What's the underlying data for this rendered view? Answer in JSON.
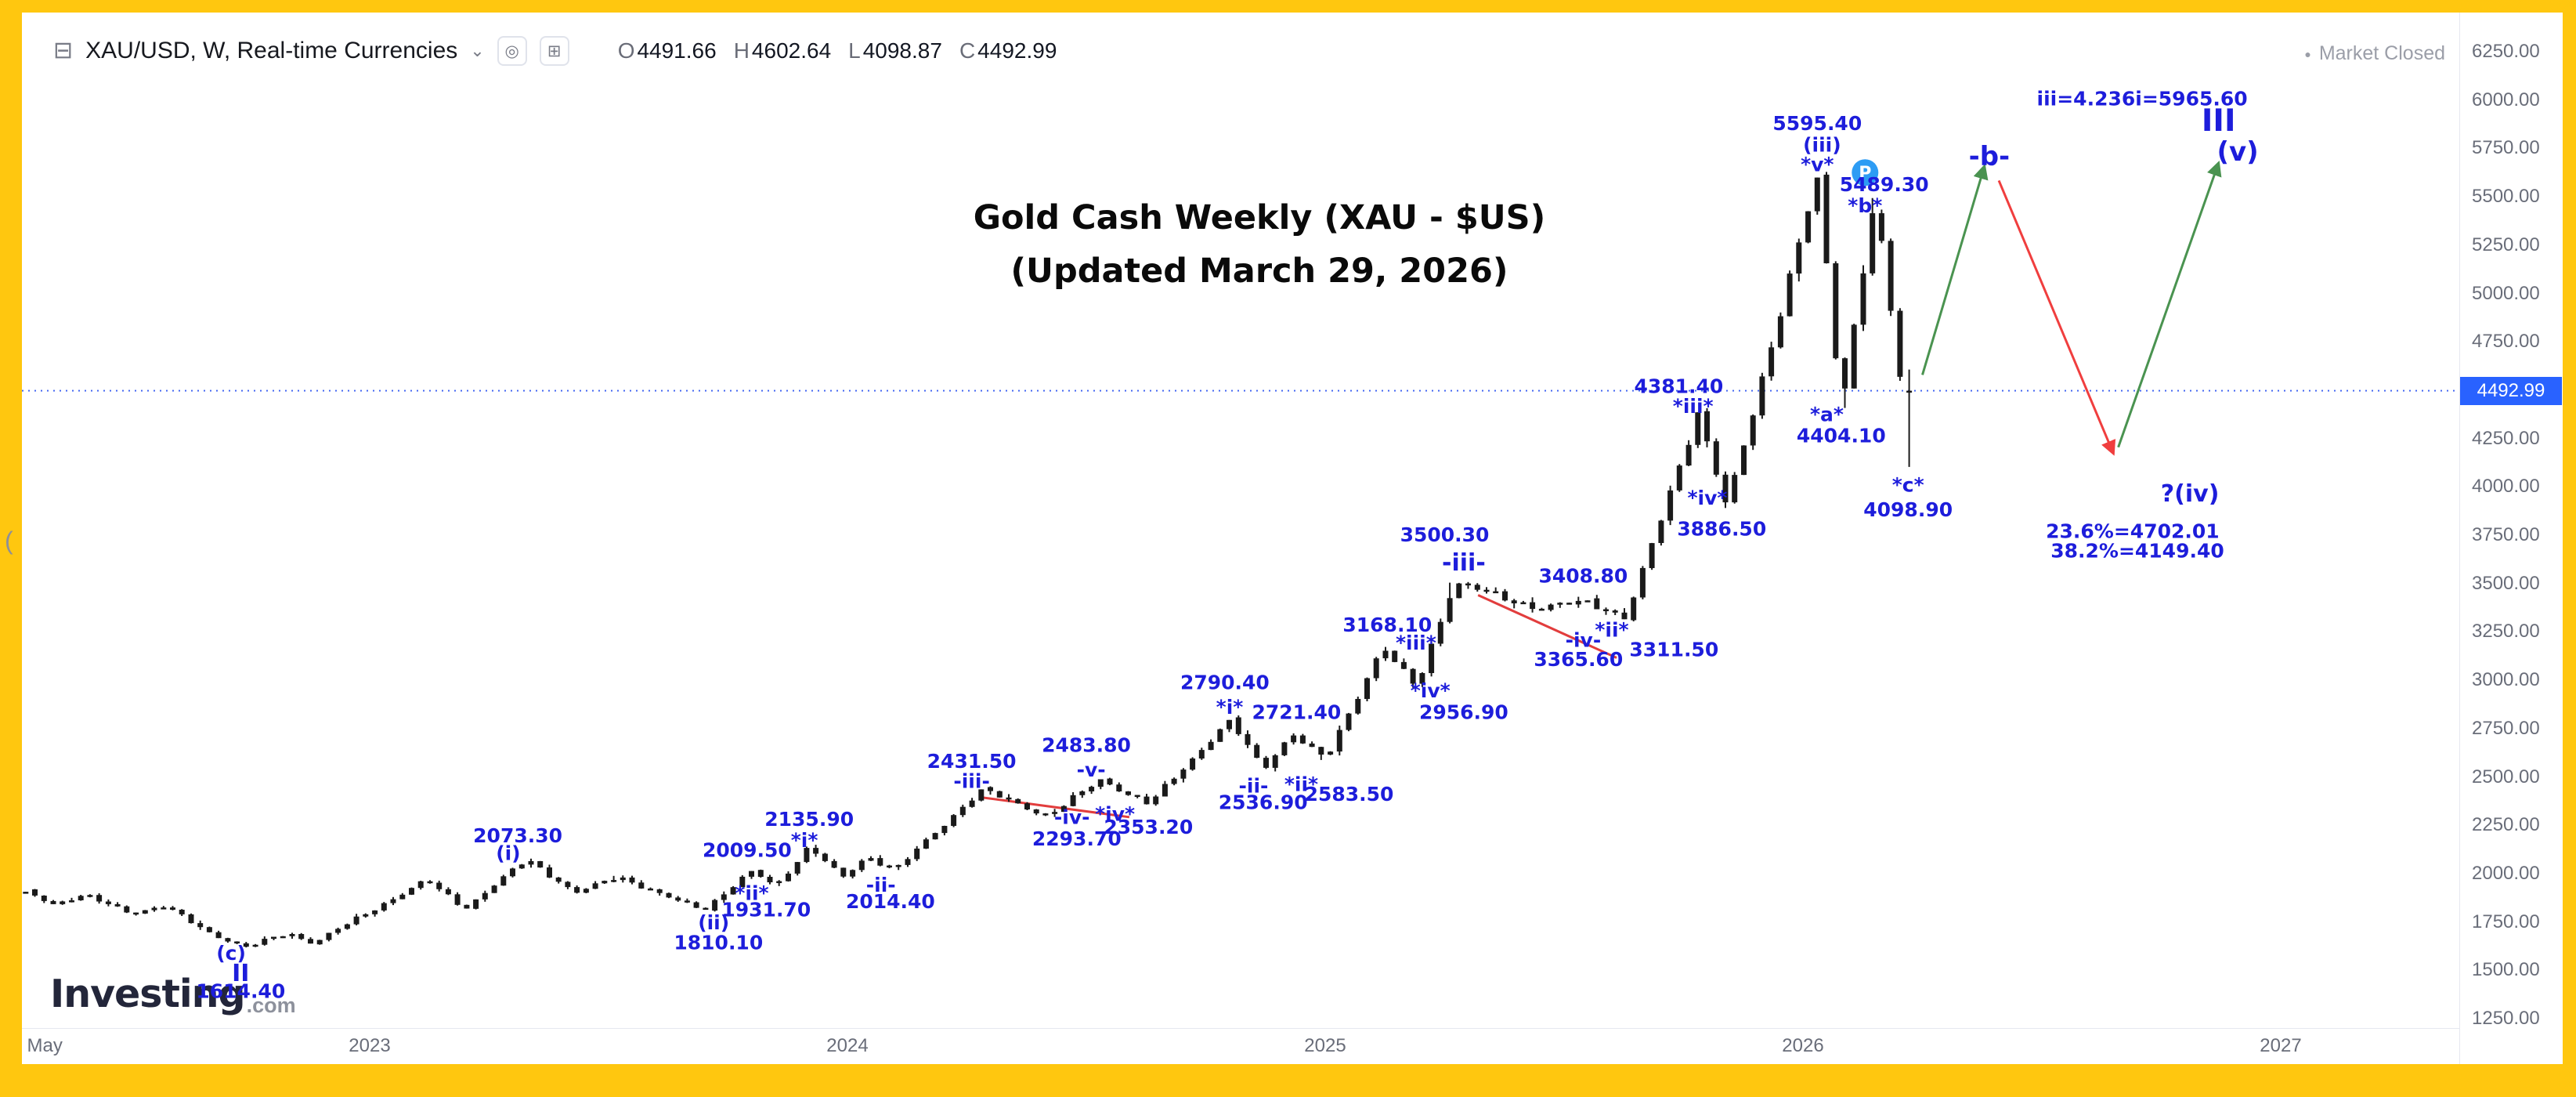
{
  "header": {
    "symbol_title": "XAU/USD, W, Real-time Currencies",
    "ohlc": [
      {
        "k": "O",
        "v": "4491.66"
      },
      {
        "k": "H",
        "v": "4602.64"
      },
      {
        "k": "L",
        "v": "4098.87"
      },
      {
        "k": "C",
        "v": "4492.99"
      }
    ],
    "market_status": "Market Closed"
  },
  "title": {
    "line1": "Gold Cash Weekly (XAU - $US)",
    "line2": "(Updated March 29, 2026)"
  },
  "watermark": {
    "main": "Investing",
    "suffix": ".com"
  },
  "misc": {
    "left_glyph": "("
  },
  "price_axis": {
    "ticks": [
      "6250.00",
      "6000.00",
      "5750.00",
      "5500.00",
      "5250.00",
      "5000.00",
      "4750.00",
      "4500.00",
      "4250.00",
      "4000.00",
      "3750.00",
      "3500.00",
      "3250.00",
      "3000.00",
      "2750.00",
      "2500.00",
      "2250.00",
      "2000.00",
      "1750.00",
      "1500.00",
      "1250.00"
    ],
    "badge": "4492.99"
  },
  "time_axis": {
    "ticks": [
      {
        "label": "May",
        "t": 2022.32
      },
      {
        "label": "2023",
        "t": 2023
      },
      {
        "label": "2024",
        "t": 2024
      },
      {
        "label": "2025",
        "t": 2025
      },
      {
        "label": "2026",
        "t": 2026
      },
      {
        "label": "2027",
        "t": 2027
      }
    ]
  },
  "chart_data": {
    "type": "candlestick",
    "symbol": "XAU/USD",
    "timeframe": "W",
    "title": "Gold Cash Weekly (XAU - $US)",
    "subtitle": "(Updated March 29, 2026)",
    "ylim": [
      1250,
      6250
    ],
    "xlim_years": [
      2022.27,
      2027.37
    ],
    "grid": false,
    "current_price": 4492.99,
    "ohlc_last": {
      "o": 4491.66,
      "h": 4602.64,
      "l": 4098.87,
      "c": 4492.99
    },
    "pivots": [
      [
        2022.28,
        1902
      ],
      [
        2022.34,
        1838
      ],
      [
        2022.4,
        1886
      ],
      [
        2022.5,
        1792
      ],
      [
        2022.57,
        1829
      ],
      [
        2022.66,
        1695
      ],
      [
        2022.74,
        1614.4
      ],
      [
        2022.83,
        1690
      ],
      [
        2022.88,
        1634
      ],
      [
        2023.02,
        1828
      ],
      [
        2023.12,
        1962
      ],
      [
        2023.2,
        1815
      ],
      [
        2023.33,
        2073.3
      ],
      [
        2023.43,
        1893
      ],
      [
        2023.52,
        1984
      ],
      [
        2023.61,
        1885
      ],
      [
        2023.7,
        1810.1
      ],
      [
        2023.8,
        2009.5
      ],
      [
        2023.85,
        1931.7
      ],
      [
        2023.92,
        2135.9
      ],
      [
        2023.99,
        1974
      ],
      [
        2024.04,
        2086
      ],
      [
        2024.1,
        2014.4
      ],
      [
        2024.28,
        2431.5
      ],
      [
        2024.42,
        2293.7
      ],
      [
        2024.53,
        2483.8
      ],
      [
        2024.63,
        2353.2
      ],
      [
        2024.8,
        2790.4
      ],
      [
        2024.87,
        2536.9
      ],
      [
        2024.93,
        2721.4
      ],
      [
        2025.0,
        2583.5
      ],
      [
        2025.12,
        3168.1
      ],
      [
        2025.19,
        2956.9
      ],
      [
        2025.27,
        3500.3
      ],
      [
        2025.45,
        3365.6
      ],
      [
        2025.55,
        3408.8
      ],
      [
        2025.63,
        3311.5
      ],
      [
        2025.78,
        4381.4
      ],
      [
        2025.84,
        3886.5
      ],
      [
        2026.03,
        5595.4
      ],
      [
        2026.08,
        4404.1
      ],
      [
        2026.15,
        5489.3
      ],
      [
        2026.23,
        4098.9
      ]
    ],
    "annotations": [
      {
        "text": "(c)",
        "t": 2022.71,
        "p": 1585
      },
      {
        "text": "II",
        "t": 2022.73,
        "p": 1482,
        "s": "md"
      },
      {
        "text": "1614.40",
        "t": 2022.73,
        "p": 1388
      },
      {
        "text": "2073.30",
        "t": 2023.31,
        "p": 2194
      },
      {
        "text": "(i)",
        "t": 2023.29,
        "p": 2101
      },
      {
        "text": "2009.50",
        "t": 2023.79,
        "p": 2118
      },
      {
        "text": "2135.90",
        "t": 2023.92,
        "p": 2279
      },
      {
        "text": "*i*",
        "t": 2023.91,
        "p": 2169
      },
      {
        "text": "*ii*",
        "t": 2023.8,
        "p": 1896
      },
      {
        "text": "1931.70",
        "t": 2023.83,
        "p": 1811
      },
      {
        "text": "(ii)",
        "t": 2023.72,
        "p": 1743
      },
      {
        "text": "1810.10",
        "t": 2023.73,
        "p": 1641
      },
      {
        "text": "-ii-",
        "t": 2024.07,
        "p": 1938
      },
      {
        "text": "2014.40",
        "t": 2024.09,
        "p": 1853
      },
      {
        "text": "2431.50",
        "t": 2024.26,
        "p": 2577
      },
      {
        "text": "-iii-",
        "t": 2024.26,
        "p": 2475
      },
      {
        "text": "-iv-",
        "t": 2024.47,
        "p": 2288
      },
      {
        "text": "2293.70",
        "t": 2024.48,
        "p": 2177
      },
      {
        "text": "2483.80",
        "t": 2024.5,
        "p": 2661
      },
      {
        "text": "-v-",
        "t": 2024.51,
        "p": 2534
      },
      {
        "text": "*iv*",
        "t": 2024.56,
        "p": 2305
      },
      {
        "text": "2353.20",
        "t": 2024.63,
        "p": 2237
      },
      {
        "text": "2790.40",
        "t": 2024.79,
        "p": 2985
      },
      {
        "text": "*i*",
        "t": 2024.8,
        "p": 2858
      },
      {
        "text": "2721.40",
        "t": 2024.94,
        "p": 2832
      },
      {
        "text": "-ii-",
        "t": 2024.85,
        "p": 2450
      },
      {
        "text": "2536.90",
        "t": 2024.87,
        "p": 2365
      },
      {
        "text": "*ii*",
        "t": 2024.95,
        "p": 2458
      },
      {
        "text": "2583.50",
        "t": 2025.05,
        "p": 2407
      },
      {
        "text": "3168.10",
        "t": 2025.13,
        "p": 3283
      },
      {
        "text": "*iii*",
        "t": 2025.19,
        "p": 3190
      },
      {
        "text": "*iv*",
        "t": 2025.22,
        "p": 2943
      },
      {
        "text": "2956.90",
        "t": 2025.29,
        "p": 2832
      },
      {
        "text": "3500.30",
        "t": 2025.25,
        "p": 3750
      },
      {
        "text": "-iii-",
        "t": 2025.29,
        "p": 3606,
        "s": "md"
      },
      {
        "text": "3408.80",
        "t": 2025.54,
        "p": 3537
      },
      {
        "text": "-iv-",
        "t": 2025.54,
        "p": 3205
      },
      {
        "text": "3365.60",
        "t": 2025.53,
        "p": 3105
      },
      {
        "text": "*ii*",
        "t": 2025.6,
        "p": 3257
      },
      {
        "text": "3311.50",
        "t": 2025.73,
        "p": 3155
      },
      {
        "text": "4381.40",
        "t": 2025.74,
        "p": 4516
      },
      {
        "text": "*iii*",
        "t": 2025.77,
        "p": 4414
      },
      {
        "text": "*iv*",
        "t": 2025.8,
        "p": 3940
      },
      {
        "text": "3886.50",
        "t": 2025.83,
        "p": 3780
      },
      {
        "text": "5595.40",
        "t": 2026.03,
        "p": 5876
      },
      {
        "text": "(iii)",
        "t": 2026.04,
        "p": 5765
      },
      {
        "text": "*v*",
        "t": 2026.03,
        "p": 5663
      },
      {
        "text": "5489.30",
        "t": 2026.17,
        "p": 5561
      },
      {
        "text": "*b*",
        "t": 2026.13,
        "p": 5451
      },
      {
        "text": "*a*",
        "t": 2026.05,
        "p": 4371
      },
      {
        "text": "4404.10",
        "t": 2026.08,
        "p": 4261
      },
      {
        "text": "*c*",
        "t": 2026.22,
        "p": 4006
      },
      {
        "text": "4098.90",
        "t": 2026.22,
        "p": 3878
      },
      {
        "text": "-b-",
        "t": 2026.39,
        "p": 5706,
        "s": "lg"
      },
      {
        "text": "?(iv)",
        "t": 2026.81,
        "p": 3963,
        "s": "md"
      },
      {
        "text": "23.6%=4702.01",
        "t": 2026.69,
        "p": 3768
      },
      {
        "text": "38.2%=4149.40",
        "t": 2026.7,
        "p": 3666
      },
      {
        "text": "iii=4.236i=5965.60",
        "t": 2026.71,
        "p": 6003
      },
      {
        "text": "III",
        "t": 2026.87,
        "p": 5893,
        "s": "xl"
      },
      {
        "text": "(v)",
        "t": 2026.91,
        "p": 5731,
        "s": "lg"
      }
    ],
    "arrows": [
      {
        "from": [
          2026.25,
          4575
        ],
        "to": [
          2026.38,
          5655
        ],
        "color": "up"
      },
      {
        "from": [
          2026.41,
          5580
        ],
        "to": [
          2026.65,
          4167
        ],
        "color": "down"
      },
      {
        "from": [
          2026.66,
          4201
        ],
        "to": [
          2026.87,
          5672
        ],
        "color": "up"
      }
    ],
    "trendlines": [
      {
        "from": [
          2024.28,
          2390
        ],
        "to": [
          2024.59,
          2288
        ]
      },
      {
        "from": [
          2025.32,
          3436
        ],
        "to": [
          2025.61,
          3112
        ]
      }
    ],
    "p_badge": {
      "label": "P",
      "t": 2026.13,
      "p": 5621
    },
    "colors": {
      "bars": "#1a1a1a",
      "annotation": "#1d1ddb",
      "arrow_up": "#4a9350",
      "arrow_down": "#f03e3e",
      "trendline": "#e23d3d",
      "price_line": "#4468f2",
      "badge_bg": "#2962ff",
      "frame": "#ffc70f"
    }
  }
}
